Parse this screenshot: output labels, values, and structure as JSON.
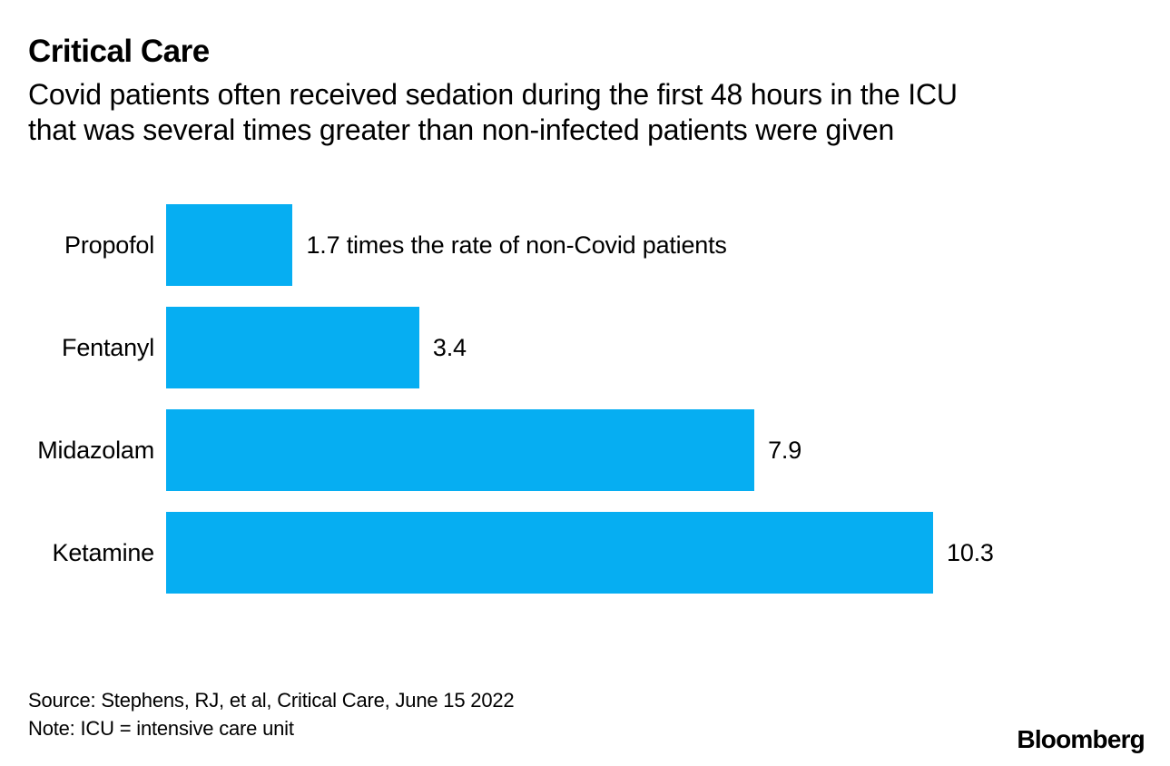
{
  "chart_data": {
    "type": "bar",
    "orientation": "horizontal",
    "title": "Critical Care",
    "subtitle": "Covid patients often received sedation during the first 48 hours in the ICU that was several times greater than non-infected patients were given",
    "subtitle_lines": [
      "Covid patients often received sedation during the first 48 hours in the ICU",
      "that was several times greater than non-infected patients were given"
    ],
    "categories": [
      "Propofol",
      "Fentanyl",
      "Midazolam",
      "Ketamine"
    ],
    "values": [
      1.7,
      3.4,
      7.9,
      10.3
    ],
    "value_labels": [
      "1.7 times the rate of non-Covid patients",
      "3.4",
      "7.9",
      "10.3"
    ],
    "xlim": [
      0,
      10.3
    ],
    "bar_color": "#06AEF2",
    "grid": "off",
    "legend": "none",
    "source": "Source: Stephens, RJ, et al, Critical Care, June 15 2022",
    "note": "Note: ICU = intensive care unit"
  },
  "footer": {
    "brand": "Bloomberg"
  }
}
